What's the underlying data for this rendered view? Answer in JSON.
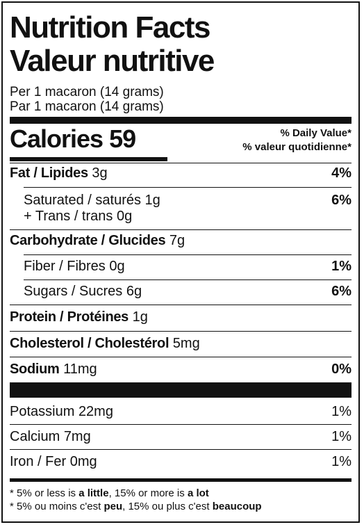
{
  "title_en": "Nutrition Facts",
  "title_fr": "Valeur nutritive",
  "serving_en": "Per 1 macaron (14 grams)",
  "serving_fr": "Par 1 macaron (14 grams)",
  "calories_label": "Calories",
  "calories_value": "59",
  "dv_en": "% Daily Value*",
  "dv_fr": "% valeur quotidienne*",
  "rows": {
    "fat": {
      "label": "Fat / Lipides",
      "amount": "3g",
      "pct": "4%"
    },
    "saturated": {
      "label": "Saturated / saturés",
      "amount": "1g",
      "pct": "6%"
    },
    "trans": {
      "label": "+ Trans / trans",
      "amount": "0g"
    },
    "carb": {
      "label": "Carbohydrate / Glucides",
      "amount": "7g"
    },
    "fiber": {
      "label": "Fiber / Fibres",
      "amount": "0g",
      "pct": "1%"
    },
    "sugars": {
      "label": "Sugars / Sucres",
      "amount": "6g",
      "pct": "6%"
    },
    "protein": {
      "label": "Protein / Protéines",
      "amount": "1g"
    },
    "cholesterol": {
      "label": "Cholesterol / Cholestérol",
      "amount": "5mg"
    },
    "sodium": {
      "label": "Sodium",
      "amount": "11mg",
      "pct": "0%"
    },
    "potassium": {
      "label": "Potassium",
      "amount": "22mg",
      "pct": "1%"
    },
    "calcium": {
      "label": "Calcium",
      "amount": "7mg",
      "pct": "1%"
    },
    "iron": {
      "label": "Iron / Fer",
      "amount": "0mg",
      "pct": "1%"
    }
  },
  "footnote_en": {
    "a": "* 5% or less is ",
    "b": "a little",
    "c": ", 15% or more is ",
    "d": "a lot"
  },
  "footnote_fr": {
    "a": "* 5% ou moins c'est ",
    "b": "peu",
    "c": ", 15% ou plus c'est ",
    "d": "beaucoup"
  }
}
